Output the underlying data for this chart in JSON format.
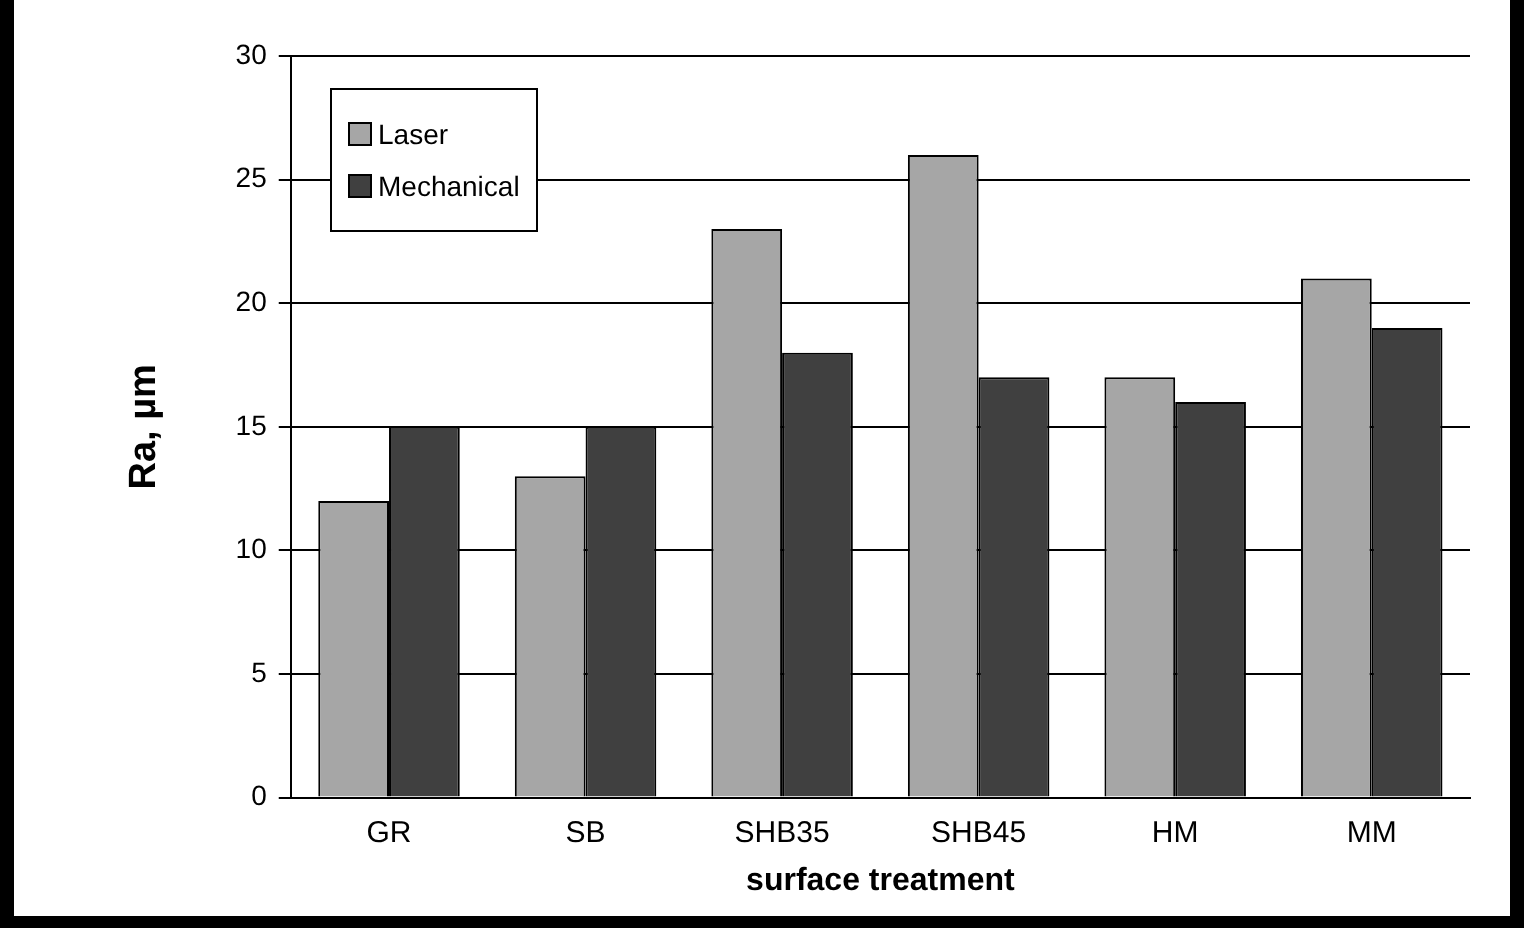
{
  "chart_data": {
    "type": "bar",
    "xlabel": "surface treatment",
    "ylabel": "Ra, µm",
    "categories": [
      "GR",
      "SB",
      "SHB35",
      "SHB45",
      "HM",
      "MM"
    ],
    "series": [
      {
        "name": "Laser",
        "color": "#a6a6a6",
        "values": [
          12,
          13,
          23,
          26,
          17,
          21
        ]
      },
      {
        "name": "Mechanical",
        "color": "#404040",
        "values": [
          15,
          15,
          18,
          17,
          16,
          19
        ]
      }
    ],
    "ylim": [
      0,
      30
    ],
    "yticks": [
      0,
      5,
      10,
      15,
      20,
      25,
      30
    ],
    "grid": "y",
    "legend": "top left"
  }
}
